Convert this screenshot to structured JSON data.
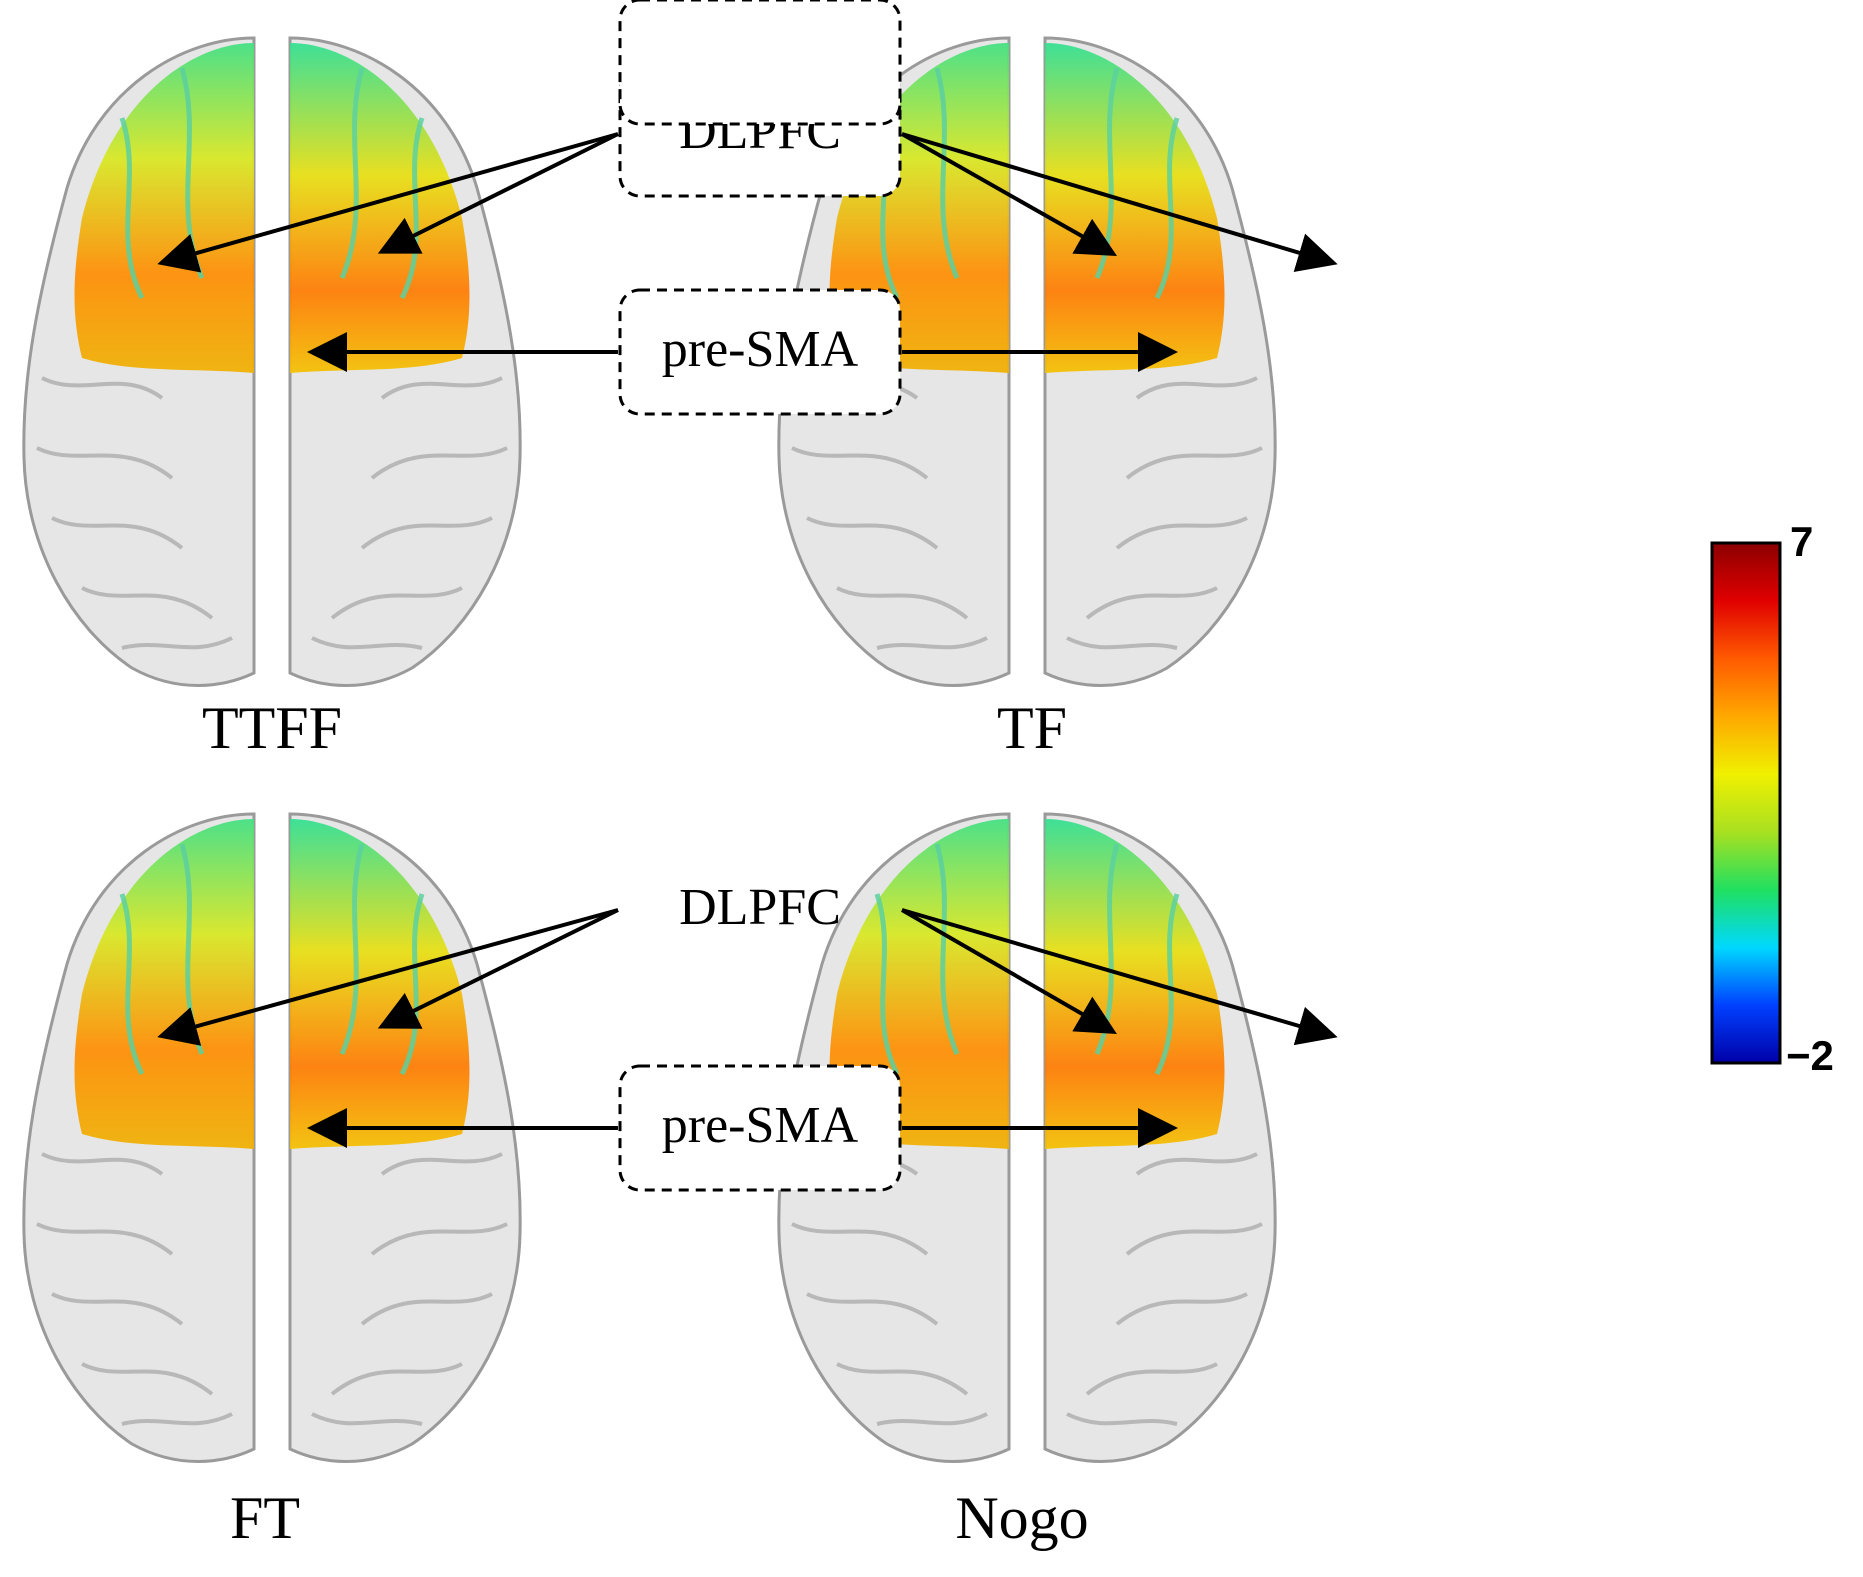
{
  "panels": [
    {
      "id": "ttff",
      "label": "TTFF"
    },
    {
      "id": "tf",
      "label": "TF"
    },
    {
      "id": "ft",
      "label": "FT"
    },
    {
      "id": "nogo",
      "label": "Nogo"
    }
  ],
  "region_labels": {
    "dlpfc": "DLPFC",
    "presma": "pre-SMA"
  },
  "colorbar": {
    "max_label": "7",
    "min_label": "−2",
    "max": 7,
    "min": -2,
    "colors": [
      "#0000a8",
      "#0040ff",
      "#00d8ff",
      "#20e060",
      "#a8e020",
      "#f0f000",
      "#ffa800",
      "#ff5a00",
      "#e00000",
      "#8c0000"
    ]
  }
}
